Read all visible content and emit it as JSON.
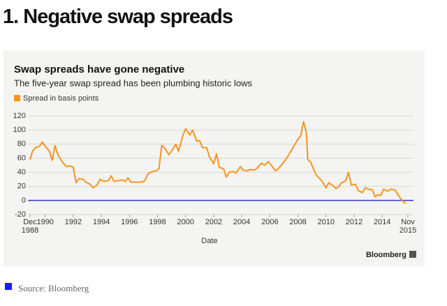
{
  "heading": "1. Negative swap spreads",
  "source": "Source: Bloomberg",
  "chart_data": {
    "type": "line",
    "title": "Swap spreads have gone negative",
    "subtitle": "The five-year swap spread has been plumbing historic lows",
    "xlabel": "Date",
    "credit": "Bloomberg",
    "xlim": [
      1988.92,
      2015.83
    ],
    "xticks": [
      {
        "value": 1988.92,
        "label": "Dec 1988"
      },
      1990,
      1992,
      1994,
      1996,
      1998,
      2000,
      2002,
      2004,
      2006,
      2008,
      2010,
      2012,
      2014,
      {
        "value": 2015.83,
        "label": "Nov 2015"
      }
    ],
    "ylim": [
      -20,
      120
    ],
    "yticks": [
      -20,
      0,
      20,
      40,
      60,
      80,
      100,
      120
    ],
    "grid": true,
    "zero_line_color": "#3333cc",
    "series": [
      {
        "name": "Spread in basis points",
        "color": "#f7941d",
        "x": [
          1988.92,
          1989.1,
          1989.3,
          1989.6,
          1989.8,
          1990.0,
          1990.3,
          1990.5,
          1990.7,
          1990.9,
          1991.2,
          1991.5,
          1991.8,
          1992.0,
          1992.2,
          1992.4,
          1992.7,
          1992.9,
          1993.2,
          1993.4,
          1993.7,
          1993.9,
          1994.2,
          1994.5,
          1994.7,
          1994.9,
          1995.2,
          1995.5,
          1995.7,
          1995.9,
          1996.1,
          1996.5,
          1996.9,
          1997.1,
          1997.3,
          1997.6,
          1997.9,
          1998.1,
          1998.3,
          1998.5,
          1998.8,
          1999.0,
          1999.3,
          1999.5,
          1999.8,
          2000.0,
          2000.3,
          2000.5,
          2000.8,
          2001.0,
          2001.2,
          2001.5,
          2001.7,
          2002.0,
          2002.2,
          2002.4,
          2002.7,
          2002.9,
          2003.1,
          2003.4,
          2003.6,
          2003.9,
          2004.1,
          2004.4,
          2004.6,
          2004.9,
          2005.1,
          2005.4,
          2005.6,
          2005.9,
          2006.1,
          2006.4,
          2006.6,
          2006.9,
          2007.2,
          2007.5,
          2007.8,
          2008.0,
          2008.2,
          2008.4,
          2008.6,
          2008.7,
          2008.9,
          2009.1,
          2009.3,
          2009.6,
          2009.8,
          2010.0,
          2010.2,
          2010.5,
          2010.7,
          2010.9,
          2011.1,
          2011.4,
          2011.6,
          2011.8,
          2012.1,
          2012.3,
          2012.6,
          2012.8,
          2013.0,
          2013.3,
          2013.5,
          2013.7,
          2013.9,
          2014.1,
          2014.4,
          2014.6,
          2014.9,
          2015.1,
          2015.3,
          2015.5,
          2015.7
        ],
        "values": [
          58,
          70,
          75,
          77,
          83,
          77,
          70,
          57,
          78,
          65,
          55,
          48,
          49,
          47,
          25,
          31,
          30,
          26,
          23,
          18,
          22,
          30,
          27,
          28,
          35,
          27,
          28,
          29,
          27,
          32,
          26,
          26,
          26,
          28,
          37,
          41,
          42,
          45,
          78,
          75,
          65,
          70,
          80,
          70,
          92,
          102,
          93,
          100,
          84,
          85,
          75,
          75,
          62,
          52,
          66,
          47,
          45,
          33,
          40,
          41,
          39,
          48,
          43,
          42,
          44,
          43,
          46,
          53,
          50,
          55,
          50,
          42,
          45,
          52,
          60,
          70,
          80,
          87,
          92,
          112,
          96,
          58,
          55,
          45,
          36,
          30,
          25,
          18,
          25,
          21,
          17,
          19,
          25,
          28,
          40,
          22,
          23,
          14,
          11,
          18,
          16,
          15,
          5,
          8,
          7,
          16,
          13,
          16,
          15,
          9,
          3,
          -2,
          -4
        ]
      }
    ]
  }
}
